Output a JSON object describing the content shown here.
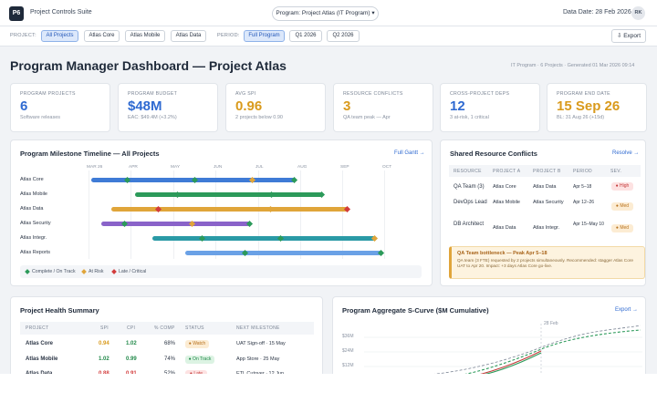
{
  "app": {
    "logo": "P6",
    "name": "Project Controls Suite",
    "program_select": "Program: Project Atlas (IT Program) ▾",
    "data_date": "Data Date: 28 Feb 2026",
    "avatar": "RK"
  },
  "filters": {
    "project_label": "PROJECT:",
    "projects": [
      "All Projects",
      "Atlas Core",
      "Atlas Mobile",
      "Atlas Data"
    ],
    "period_label": "PERIOD:",
    "periods": [
      "Full Program",
      "Q1 2026",
      "Q2 2026"
    ],
    "export": "⇩ Export"
  },
  "page": {
    "title": "Program Manager Dashboard — Project Atlas",
    "meta": "IT Program · 6 Projects · Generated 01 Mar 2026 09:14"
  },
  "kpis": [
    {
      "label": "PROGRAM PROJECTS",
      "value": "6",
      "sub": "Software releases",
      "color": "#2f6ad1"
    },
    {
      "label": "PROGRAM BUDGET",
      "value": "$48M",
      "sub": "EAC: $49.4M (+3.2%)",
      "color": "#2f6ad1"
    },
    {
      "label": "AVG SPI",
      "value": "0.96",
      "sub": "2 projects below 0.90",
      "color": "#d99a1c"
    },
    {
      "label": "RESOURCE CONFLICTS",
      "value": "3",
      "sub": "QA team peak — Apr",
      "color": "#d99a1c"
    },
    {
      "label": "CROSS-PROJECT DEPS",
      "value": "12",
      "sub": "3 at-risk, 1 critical",
      "color": "#2f6ad1"
    },
    {
      "label": "PROGRAM END DATE",
      "value": "15 Sep 26",
      "sub": "BL: 31 Aug 26 (+15d)",
      "color": "#d99a1c"
    }
  ],
  "timeline": {
    "title": "Program Milestone Timeline — All Projects",
    "link": "Full Gantt →",
    "months": [
      "MAR 26",
      "APR",
      "MAY",
      "JUN",
      "JUL",
      "AUG",
      "SEP",
      "OCT"
    ],
    "rows": [
      "Atlas Core",
      "Atlas Mobile",
      "Atlas Data",
      "Atlas Security",
      "Atlas Integr.",
      "Atlas Reports"
    ],
    "legend": [
      "Complete / On Track",
      "At Risk",
      "Late / Critical"
    ],
    "colors": {
      "green": "#2c9a5a",
      "amber": "#e0a53a",
      "red": "#d23c3c",
      "blue": "#3f7bd6",
      "purple": "#8a63c9",
      "teal": "#2a9aa6",
      "lightblue": "#6aa1e6"
    }
  },
  "conflicts": {
    "title": "Shared Resource Conflicts",
    "link": "Resolve →",
    "headers": [
      "RESOURCE",
      "PROJECT A",
      "PROJECT B",
      "PERIOD",
      "SEV."
    ],
    "rows": [
      {
        "resource": "QA Team (3)",
        "a": "Atlas Core",
        "b": "Atlas Data",
        "period": "Apr 5–18",
        "sev": "● High",
        "level": "high"
      },
      {
        "resource": "DevOps Lead",
        "a": "Atlas Mobile",
        "b": "Atlas Security",
        "period": "Apr 12–26",
        "sev": "● Med",
        "level": "med"
      },
      {
        "resource": "DB Architect",
        "a": "Atlas Data",
        "b": "Atlas Integr.",
        "period": "Apr 15–May 10",
        "sev": "● Med",
        "level": "med"
      }
    ],
    "callout_title": "QA Team bottleneck — Peak Apr 5–18",
    "callout_body": "QA team (3 FTE) requested by 2 projects simultaneously. Recommended: stagger Atlas Core UAT to Apr 20. Impact: +3 days Atlas Core go-live."
  },
  "health": {
    "title": "Project Health Summary",
    "headers": [
      "PROJECT",
      "SPI",
      "CPI",
      "% COMP",
      "STATUS",
      "NEXT MILESTONE"
    ],
    "rows": [
      {
        "project": "Atlas Core",
        "spi": "0.94",
        "cpi": "1.02",
        "comp": "68%",
        "status": "● Watch",
        "level": "watch",
        "next": "UAT Sign-off · 15 May",
        "spi_color": "#d99a1c",
        "cpi_color": "#22894a"
      },
      {
        "project": "Atlas Mobile",
        "spi": "1.02",
        "cpi": "0.99",
        "comp": "74%",
        "status": "● On Track",
        "level": "ok",
        "next": "App Store · 25 May",
        "spi_color": "#22894a",
        "cpi_color": "#22894a"
      },
      {
        "project": "Atlas Data",
        "spi": "0.88",
        "cpi": "0.91",
        "comp": "52%",
        "status": "● Late",
        "level": "late",
        "next": "ETL Cutover · 12 Jun",
        "spi_color": "#d23c3c",
        "cpi_color": "#d23c3c"
      }
    ]
  },
  "scurve": {
    "title": "Program Aggregate S-Curve ($M Cumulative)",
    "link": "Export →",
    "data_date_label": "28 Feb",
    "ylabels": [
      "$36M",
      "$24M",
      "$12M"
    ]
  }
}
